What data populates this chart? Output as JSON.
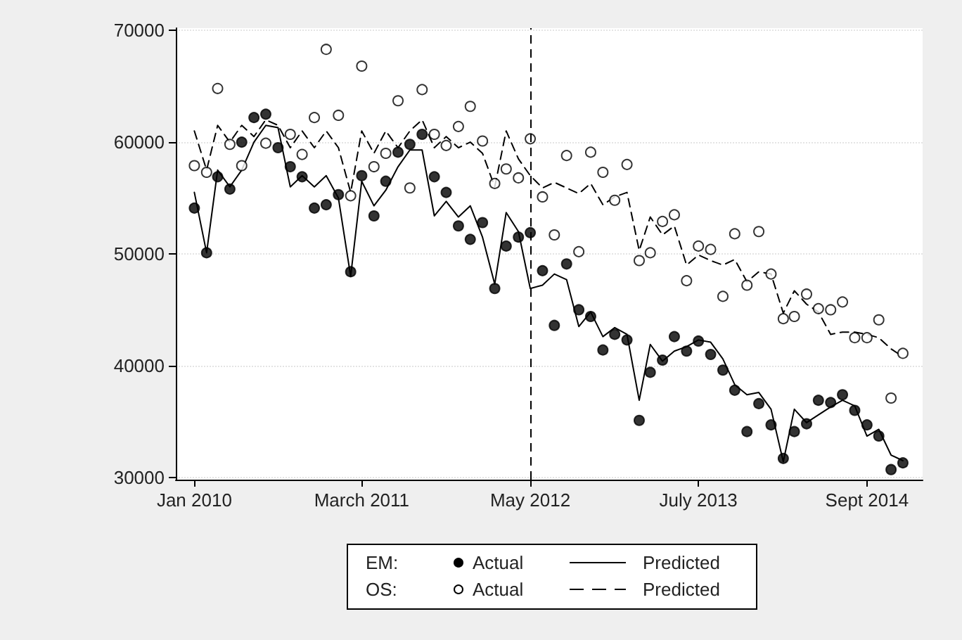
{
  "chart_data": {
    "type": "line",
    "x": [
      "2010-01",
      "2010-02",
      "2010-03",
      "2010-04",
      "2010-05",
      "2010-06",
      "2010-07",
      "2010-08",
      "2010-09",
      "2010-10",
      "2010-11",
      "2010-12",
      "2011-01",
      "2011-02",
      "2011-03",
      "2011-04",
      "2011-05",
      "2011-06",
      "2011-07",
      "2011-08",
      "2011-09",
      "2011-10",
      "2011-11",
      "2011-12",
      "2012-01",
      "2012-02",
      "2012-03",
      "2012-04",
      "2012-05",
      "2012-06",
      "2012-07",
      "2012-08",
      "2012-09",
      "2012-10",
      "2012-11",
      "2012-12",
      "2013-01",
      "2013-02",
      "2013-03",
      "2013-04",
      "2013-05",
      "2013-06",
      "2013-07",
      "2013-08",
      "2013-09",
      "2013-10",
      "2013-11",
      "2013-12",
      "2014-01",
      "2014-02",
      "2014-03",
      "2014-04",
      "2014-05",
      "2014-06",
      "2014-07",
      "2014-08",
      "2014-09",
      "2014-10",
      "2014-11",
      "2014-12"
    ],
    "series": [
      {
        "name": "Actual",
        "type": "scatter",
        "marker": "circle",
        "color": "#000000",
        "values": [
          54100,
          50100,
          56900,
          55800,
          60000,
          62200,
          62500,
          59500,
          57800,
          56900,
          54100,
          54400,
          55300,
          48400,
          57000,
          53400,
          56500,
          59100,
          59800,
          60700,
          56900,
          55500,
          52500,
          51300,
          52800,
          46900,
          50700,
          51500,
          51900,
          48500,
          43600,
          49100,
          45000,
          44400,
          41400,
          42800,
          42300,
          35100,
          39400,
          40500,
          42600,
          41300,
          42200,
          41000,
          39600,
          37800,
          34100,
          36600,
          34700,
          31700,
          34100,
          34800,
          36900,
          36700,
          37400,
          36000,
          34700,
          33700,
          30700,
          31300
        ]
      },
      {
        "name": "Predicted",
        "marker": "none",
        "line_style": "solid",
        "color": "#000000",
        "values": [
          55500,
          50100,
          57500,
          56000,
          57500,
          60000,
          61500,
          61300,
          56000,
          57000,
          56000,
          57000,
          55000,
          48000,
          56500,
          54300,
          55700,
          57800,
          59300,
          59300,
          53400,
          54700,
          53300,
          54300,
          51500,
          47300,
          53700,
          52000,
          46900,
          47200,
          48200,
          47700,
          43500,
          44800,
          42600,
          43400,
          42800,
          36900,
          41900,
          40400,
          41300,
          41700,
          42300,
          42100,
          40600,
          38300,
          37400,
          37600,
          36100,
          31400,
          36100,
          34900,
          35600,
          36300,
          36900,
          36400,
          33700,
          34300,
          32000,
          31500
        ]
      },
      {
        "name": "Actual",
        "type": "scatter",
        "marker": "circle",
        "color": "#ffffff",
        "values": [
          57900,
          57300,
          64800,
          59800,
          57900,
          null,
          59900,
          null,
          60700,
          58900,
          62200,
          68300,
          62400,
          55200,
          66800,
          57800,
          59000,
          63700,
          55900,
          64700,
          60700,
          59700,
          61400,
          63200,
          60100,
          56300,
          57600,
          56800,
          60300,
          55100,
          51700,
          58800,
          50200,
          59100,
          57300,
          54800,
          58000,
          49400,
          50100,
          52900,
          53500,
          47600,
          50700,
          50400,
          46200,
          51800,
          47200,
          52000,
          48200,
          44200,
          44400,
          46400,
          45100,
          45000,
          45700,
          42500,
          42500,
          44100,
          37100,
          41100
        ]
      },
      {
        "name": "Predicted",
        "marker": "none",
        "line_style": "dashed",
        "color": "#000000",
        "values": [
          61000,
          57500,
          61500,
          60000,
          61500,
          60500,
          62000,
          61500,
          59500,
          61000,
          59500,
          61000,
          59500,
          55500,
          61000,
          59000,
          61000,
          59500,
          61000,
          62000,
          59500,
          60500,
          59500,
          60000,
          59000,
          56000,
          61000,
          58500,
          57000,
          55900,
          56400,
          55900,
          55400,
          56300,
          54400,
          55100,
          55500,
          50300,
          53300,
          51700,
          52500,
          49000,
          49900,
          49400,
          49000,
          49500,
          47500,
          48400,
          48200,
          44700,
          46700,
          45500,
          44800,
          42800,
          43000,
          43000,
          42800,
          42500,
          41500,
          40800
        ]
      }
    ],
    "xlim": [
      "2009-11-15",
      "2015-01-20"
    ],
    "xticks": [
      {
        "value": "2010-01",
        "label": "Jan 2010"
      },
      {
        "value": "2011-03",
        "label": "March 2011"
      },
      {
        "value": "2012-05",
        "label": "May 2012"
      },
      {
        "value": "2013-07",
        "label": "July 2013"
      },
      {
        "value": "2014-09",
        "label": "Sept 2014"
      }
    ],
    "ylim": [
      29800,
      70200
    ],
    "yticks": [
      30000,
      40000,
      50000,
      60000,
      70000
    ],
    "ref_lines": [
      {
        "axis": "x",
        "value": "2012-05",
        "color": "#000000",
        "line_style": "dashed"
      }
    ],
    "annotations": [
      "EM:",
      "OS:"
    ],
    "grid": "y",
    "legend": "bottom"
  }
}
